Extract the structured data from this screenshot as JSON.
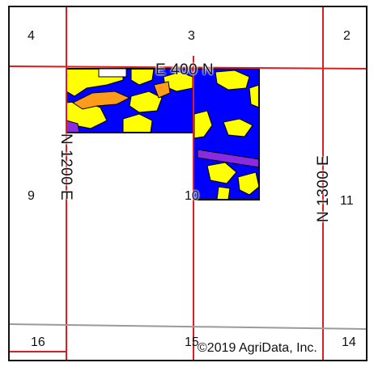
{
  "map": {
    "sections": [
      "4",
      "3",
      "2",
      "9",
      "10",
      "11",
      "16",
      "15",
      "14"
    ],
    "roads": {
      "north": "E 400 N",
      "west": "N 1200 E",
      "east": "N 1300 E"
    },
    "copyright": "©2019 AgriData, Inc.",
    "colors": {
      "section_lines": "#d81e1e",
      "soil_blue": "#0000ff",
      "soil_yellow": "#ffff00",
      "soil_orange": "#ff9a1a",
      "soil_purple": "#8a2be2",
      "gray_road": "#9a9a9a"
    }
  }
}
